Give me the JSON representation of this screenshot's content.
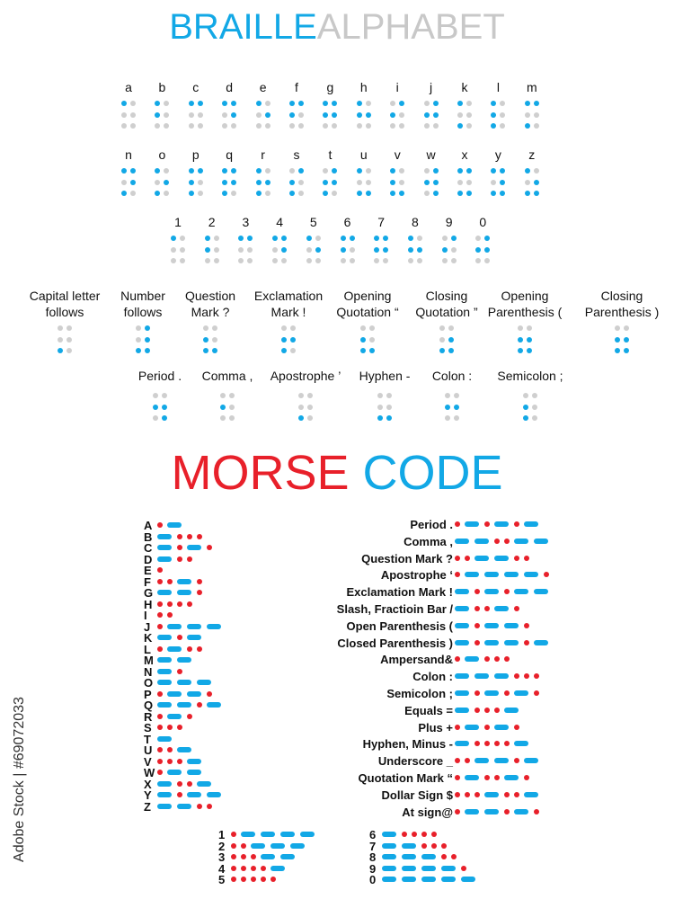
{
  "colors": {
    "blue": "#12a8e6",
    "red": "#e8202a",
    "gray": "#cfcfcf",
    "title_gray": "#c8c8c8"
  },
  "braille": {
    "title_part1": "BRAILLE",
    "title_part2": "ALPHABET",
    "letters_row1": [
      {
        "label": "a",
        "dots": "100000"
      },
      {
        "label": "b",
        "dots": "101000"
      },
      {
        "label": "c",
        "dots": "110000"
      },
      {
        "label": "d",
        "dots": "110100"
      },
      {
        "label": "e",
        "dots": "100100"
      },
      {
        "label": "f",
        "dots": "111000"
      },
      {
        "label": "g",
        "dots": "111100"
      },
      {
        "label": "h",
        "dots": "101100"
      },
      {
        "label": "i",
        "dots": "011000"
      },
      {
        "label": "j",
        "dots": "011100"
      },
      {
        "label": "k",
        "dots": "100010"
      },
      {
        "label": "l",
        "dots": "101010"
      },
      {
        "label": "m",
        "dots": "110010"
      }
    ],
    "letters_row2": [
      {
        "label": "n",
        "dots": "110110"
      },
      {
        "label": "o",
        "dots": "100110"
      },
      {
        "label": "p",
        "dots": "111010"
      },
      {
        "label": "q",
        "dots": "111110"
      },
      {
        "label": "r",
        "dots": "101110"
      },
      {
        "label": "s",
        "dots": "011010"
      },
      {
        "label": "t",
        "dots": "011110"
      },
      {
        "label": "u",
        "dots": "100011"
      },
      {
        "label": "v",
        "dots": "101011"
      },
      {
        "label": "w",
        "dots": "011101"
      },
      {
        "label": "x",
        "dots": "110011"
      },
      {
        "label": "y",
        "dots": "110111"
      },
      {
        "label": "z",
        "dots": "100111"
      }
    ],
    "numbers": [
      {
        "label": "1",
        "dots": "100000"
      },
      {
        "label": "2",
        "dots": "101000"
      },
      {
        "label": "3",
        "dots": "110000"
      },
      {
        "label": "4",
        "dots": "110100"
      },
      {
        "label": "5",
        "dots": "100100"
      },
      {
        "label": "6",
        "dots": "111000"
      },
      {
        "label": "7",
        "dots": "111100"
      },
      {
        "label": "8",
        "dots": "101100"
      },
      {
        "label": "9",
        "dots": "011000"
      },
      {
        "label": "0",
        "dots": "011100"
      }
    ],
    "punctuation_row1": [
      {
        "label": "Capital letter\nfollows",
        "dots": "000010"
      },
      {
        "label": "Number\nfollows",
        "dots": "010111"
      },
      {
        "label": "Question\nMark ?",
        "dots": "001011"
      },
      {
        "label": "Exclamation\nMark !",
        "dots": "001110"
      },
      {
        "label": "Opening\nQuotation “",
        "dots": "001011"
      },
      {
        "label": "Closing\nQuotation ”",
        "dots": "000111"
      },
      {
        "label": "Opening\nParenthesis (",
        "dots": "001111"
      },
      {
        "label": "Closing\nParenthesis )",
        "dots": "001111"
      }
    ],
    "punctuation_row2": [
      {
        "label": "Period .",
        "dots": "001101"
      },
      {
        "label": "Comma ,",
        "dots": "001000"
      },
      {
        "label": "Apostrophe ’",
        "dots": "000010"
      },
      {
        "label": "Hyphen -",
        "dots": "000011"
      },
      {
        "label": "Colon :",
        "dots": "001100"
      },
      {
        "label": "Semicolon ;",
        "dots": "001010"
      }
    ]
  },
  "morse": {
    "title_part1": "MORSE",
    "title_part2": "CODE",
    "letters": [
      {
        "label": "A",
        "code": ".-"
      },
      {
        "label": "B",
        "code": "-..."
      },
      {
        "label": "C",
        "code": "-.-."
      },
      {
        "label": "D",
        "code": "-.."
      },
      {
        "label": "E",
        "code": "."
      },
      {
        "label": "F",
        "code": "..-."
      },
      {
        "label": "G",
        "code": "--."
      },
      {
        "label": "H",
        "code": "...."
      },
      {
        "label": "I",
        "code": ".."
      },
      {
        "label": "J",
        "code": ".---"
      },
      {
        "label": "K",
        "code": "-.-"
      },
      {
        "label": "L",
        "code": ".-.."
      },
      {
        "label": "M",
        "code": "--"
      },
      {
        "label": "N",
        "code": "-."
      },
      {
        "label": "O",
        "code": "---"
      },
      {
        "label": "P",
        "code": ".--."
      },
      {
        "label": "Q",
        "code": "--.-"
      },
      {
        "label": "R",
        "code": ".-."
      },
      {
        "label": "S",
        "code": "..."
      },
      {
        "label": "T",
        "code": "-"
      },
      {
        "label": "U",
        "code": "..-"
      },
      {
        "label": "V",
        "code": "...-"
      },
      {
        "label": "W",
        "code": ".--"
      },
      {
        "label": "X",
        "code": "-..-"
      },
      {
        "label": "Y",
        "code": "-.--"
      },
      {
        "label": "Z",
        "code": "--.."
      }
    ],
    "punctuation": [
      {
        "label": "Period  .",
        "code": ".-.-.-"
      },
      {
        "label": "Comma  ,",
        "code": "--..--"
      },
      {
        "label": "Question Mark ?",
        "code": "..--.."
      },
      {
        "label": "Apostrophe  ‘",
        "code": ".----."
      },
      {
        "label": "Exclamation Mark  !",
        "code": "-.-.--"
      },
      {
        "label": "Slash, Fractioin Bar  /",
        "code": "-..-."
      },
      {
        "label": "Open Parenthesis  (",
        "code": "-.--."
      },
      {
        "label": "Closed Parenthesis  )",
        "code": "-.--.-"
      },
      {
        "label": "Ampersand&",
        "code": ".-..."
      },
      {
        "label": "Colon  :",
        "code": "---..."
      },
      {
        "label": "Semicolon  ;",
        "code": "-.-.-."
      },
      {
        "label": "Equals =",
        "code": "-...-"
      },
      {
        "label": "Plus +",
        "code": ".-.-."
      },
      {
        "label": "Hyphen, Minus  -",
        "code": "-....-"
      },
      {
        "label": "Underscore _",
        "code": "..--.-"
      },
      {
        "label": "Quotation Mark  “",
        "code": ".-..-."
      },
      {
        "label": "Dollar Sign $",
        "code": "...-..-"
      },
      {
        "label": "At sign@",
        "code": ".--.-."
      }
    ],
    "numbers_left": [
      {
        "label": "1",
        "code": ".----"
      },
      {
        "label": "2",
        "code": "..---"
      },
      {
        "label": "3",
        "code": "...--"
      },
      {
        "label": "4",
        "code": "....-"
      },
      {
        "label": "5",
        "code": "....."
      }
    ],
    "numbers_right": [
      {
        "label": "6",
        "code": "-...."
      },
      {
        "label": "7",
        "code": "--..."
      },
      {
        "label": "8",
        "code": "---.."
      },
      {
        "label": "9",
        "code": "----."
      },
      {
        "label": "0",
        "code": "-----"
      }
    ]
  },
  "watermark": "Adobe Stock | #69072033"
}
